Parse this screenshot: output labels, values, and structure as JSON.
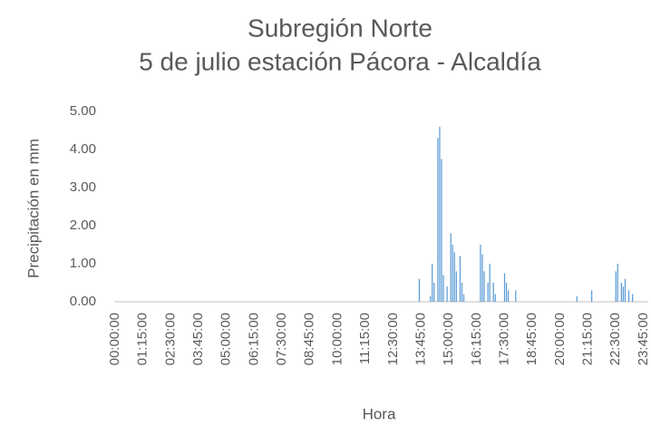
{
  "chart_data": {
    "type": "bar",
    "title": "Subregión Norte",
    "subtitle": "5 de julio estación Pácora - Alcaldía",
    "x_label": "Hora",
    "y_label": "Precipitación en mm",
    "color": "#5b9bd5",
    "ylim": [
      0,
      5
    ],
    "yticks": [
      {
        "value": 0,
        "label": "0.00"
      },
      {
        "value": 1,
        "label": "1.00"
      },
      {
        "value": 2,
        "label": "2.00"
      },
      {
        "value": 3,
        "label": "3.00"
      },
      {
        "value": 4,
        "label": "4.00"
      },
      {
        "value": 5,
        "label": "5.00"
      }
    ],
    "grid": false,
    "categories": [
      "00:00:00",
      null,
      null,
      null,
      null,
      null,
      null,
      null,
      null,
      null,
      null,
      null,
      null,
      null,
      null,
      "01:15:00",
      null,
      null,
      null,
      null,
      null,
      null,
      null,
      null,
      null,
      null,
      null,
      null,
      null,
      null,
      "02:30:00",
      null,
      null,
      null,
      null,
      null,
      null,
      null,
      null,
      null,
      null,
      null,
      null,
      null,
      null,
      "03:45:00",
      null,
      null,
      null,
      null,
      null,
      null,
      null,
      null,
      null,
      null,
      null,
      null,
      null,
      null,
      "05:00:00",
      null,
      null,
      null,
      null,
      null,
      null,
      null,
      null,
      null,
      null,
      null,
      null,
      null,
      null,
      "06:15:00",
      null,
      null,
      null,
      null,
      null,
      null,
      null,
      null,
      null,
      null,
      null,
      null,
      null,
      null,
      "07:30:00",
      null,
      null,
      null,
      null,
      null,
      null,
      null,
      null,
      null,
      null,
      null,
      null,
      null,
      null,
      "08:45:00",
      null,
      null,
      null,
      null,
      null,
      null,
      null,
      null,
      null,
      null,
      null,
      null,
      null,
      null,
      "10:00:00",
      null,
      null,
      null,
      null,
      null,
      null,
      null,
      null,
      null,
      null,
      null,
      null,
      null,
      null,
      "11:15:00",
      null,
      null,
      null,
      null,
      null,
      null,
      null,
      null,
      null,
      null,
      null,
      null,
      null,
      null,
      "12:30:00",
      null,
      null,
      null,
      null,
      null,
      null,
      null,
      null,
      null,
      null,
      null,
      null,
      null,
      null,
      "13:45:00",
      null,
      null,
      null,
      null,
      null,
      null,
      null,
      null,
      null,
      null,
      null,
      null,
      null,
      null,
      "15:00:00",
      null,
      null,
      null,
      null,
      null,
      null,
      null,
      null,
      null,
      null,
      null,
      null,
      null,
      null,
      "16:15:00",
      null,
      null,
      null,
      null,
      null,
      null,
      null,
      null,
      null,
      null,
      null,
      null,
      null,
      null,
      "17:30:00",
      null,
      null,
      null,
      null,
      null,
      null,
      null,
      null,
      null,
      null,
      null,
      null,
      null,
      null,
      "18:45:00",
      null,
      null,
      null,
      null,
      null,
      null,
      null,
      null,
      null,
      null,
      null,
      null,
      null,
      null,
      "20:00:00",
      null,
      null,
      null,
      null,
      null,
      null,
      null,
      null,
      null,
      null,
      null,
      null,
      null,
      null,
      "21:15:00",
      null,
      null,
      null,
      null,
      null,
      null,
      null,
      null,
      null,
      null,
      null,
      null,
      null,
      null,
      "22:30:00",
      null,
      null,
      null,
      null,
      null,
      null,
      null,
      null,
      null,
      null,
      null,
      null,
      null,
      null,
      "23:45:00",
      null,
      null
    ],
    "values": [
      0,
      0,
      0,
      0,
      0,
      0,
      0,
      0,
      0,
      0,
      0,
      0,
      0,
      0,
      0,
      0,
      0,
      0,
      0,
      0,
      0,
      0,
      0,
      0,
      0,
      0,
      0,
      0,
      0,
      0,
      0,
      0,
      0,
      0,
      0,
      0,
      0,
      0,
      0,
      0,
      0,
      0,
      0,
      0,
      0,
      0,
      0,
      0,
      0,
      0,
      0,
      0,
      0,
      0,
      0,
      0,
      0,
      0,
      0,
      0,
      0,
      0,
      0,
      0,
      0,
      0,
      0,
      0,
      0,
      0,
      0,
      0,
      0,
      0,
      0,
      0,
      0,
      0,
      0,
      0,
      0,
      0,
      0,
      0,
      0,
      0,
      0,
      0,
      0,
      0,
      0,
      0,
      0,
      0,
      0,
      0,
      0,
      0,
      0,
      0,
      0,
      0,
      0,
      0,
      0,
      0,
      0,
      0,
      0,
      0,
      0,
      0,
      0,
      0,
      0,
      0,
      0,
      0,
      0,
      0,
      0,
      0,
      0,
      0,
      0,
      0,
      0,
      0,
      0,
      0,
      0,
      0,
      0,
      0,
      0,
      0,
      0,
      0,
      0,
      0,
      0,
      0,
      0,
      0,
      0,
      0,
      0,
      0,
      0,
      0,
      0,
      0,
      0,
      0,
      0,
      0,
      0,
      0,
      0,
      0,
      0,
      0,
      0,
      0,
      0.6,
      0,
      0,
      0,
      0,
      0,
      0.15,
      1.0,
      0.5,
      0,
      4.3,
      4.6,
      3.75,
      0.7,
      0,
      0.4,
      0,
      1.8,
      1.5,
      1.3,
      0.8,
      0,
      1.2,
      0.5,
      0.2,
      0,
      0,
      0,
      0,
      0,
      0,
      0,
      0,
      1.5,
      1.25,
      0.8,
      0,
      0.5,
      1.0,
      0,
      0.5,
      0.2,
      0,
      0,
      0,
      0,
      0.75,
      0.5,
      0.3,
      0,
      0,
      0,
      0.3,
      0,
      0,
      0,
      0,
      0,
      0,
      0,
      0,
      0,
      0,
      0,
      0,
      0,
      0,
      0,
      0,
      0,
      0,
      0,
      0,
      0,
      0,
      0,
      0,
      0,
      0,
      0,
      0,
      0,
      0,
      0,
      0,
      0.15,
      0,
      0,
      0,
      0,
      0,
      0,
      0,
      0.3,
      0,
      0,
      0,
      0,
      0,
      0,
      0,
      0,
      0,
      0,
      0,
      0,
      0.8,
      1.0,
      0,
      0.5,
      0.4,
      0.6,
      0,
      0.3,
      0,
      0.2,
      0,
      0,
      0,
      0,
      0,
      0,
      0,
      0
    ]
  }
}
